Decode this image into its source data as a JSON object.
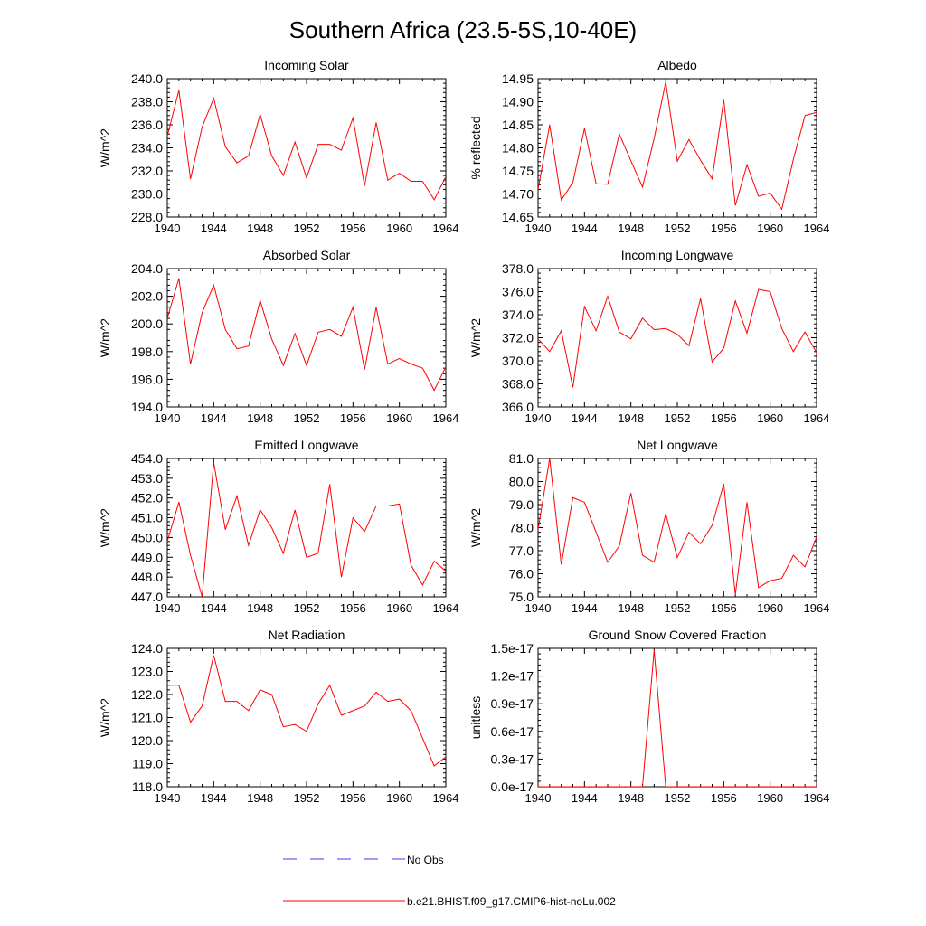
{
  "figure": {
    "title": "Southern Africa (23.5-5S,10-40E)",
    "legend": {
      "placement": "bottom-center",
      "entries": [
        {
          "label": "No Obs",
          "color": "#3b3bff",
          "dash": true
        },
        {
          "label": "b.e21.BHIST.f09_g17.CMIP6-hist-noLu.002",
          "color": "#ff0000",
          "dash": false
        }
      ]
    }
  },
  "chart_data": [
    {
      "type": "line",
      "title": "Incoming Solar",
      "ylabel": "W/m^2",
      "xlim": [
        1940,
        1964
      ],
      "ylim": [
        228.0,
        240.0
      ],
      "x_ticks": [
        "1940",
        "1944",
        "1948",
        "1952",
        "1956",
        "1960",
        "1964"
      ],
      "y_ticks": [
        "228.0",
        "230.0",
        "232.0",
        "234.0",
        "236.0",
        "238.0",
        "240.0"
      ],
      "series": [
        {
          "color": "#ff0000",
          "x": [
            1940,
            1941,
            1942,
            1943,
            1944,
            1945,
            1946,
            1947,
            1948,
            1949,
            1950,
            1951,
            1952,
            1953,
            1954,
            1955,
            1956,
            1957,
            1958,
            1959,
            1960,
            1961,
            1962,
            1963,
            1964
          ],
          "values": [
            235.0,
            239.0,
            231.3,
            235.8,
            238.3,
            234.1,
            232.7,
            233.3,
            236.9,
            233.3,
            231.6,
            234.5,
            231.4,
            234.3,
            234.3,
            233.8,
            236.6,
            230.7,
            236.2,
            231.2,
            231.8,
            231.1,
            231.1,
            229.5,
            231.5
          ]
        }
      ]
    },
    {
      "type": "line",
      "title": "Albedo",
      "ylabel": "% reflected",
      "xlim": [
        1940,
        1964
      ],
      "ylim": [
        14.65,
        14.95
      ],
      "x_ticks": [
        "1940",
        "1944",
        "1948",
        "1952",
        "1956",
        "1960",
        "1964"
      ],
      "y_ticks": [
        "14.65",
        "14.70",
        "14.75",
        "14.80",
        "14.85",
        "14.90",
        "14.95"
      ],
      "series": [
        {
          "color": "#ff0000",
          "x": [
            1940,
            1941,
            1942,
            1943,
            1944,
            1945,
            1946,
            1947,
            1948,
            1949,
            1950,
            1951,
            1952,
            1953,
            1954,
            1955,
            1956,
            1957,
            1958,
            1959,
            1960,
            1961,
            1962,
            1963,
            1964
          ],
          "values": [
            14.71,
            14.85,
            14.687,
            14.725,
            14.842,
            14.722,
            14.721,
            14.83,
            14.772,
            14.715,
            14.82,
            14.943,
            14.771,
            14.818,
            14.773,
            14.733,
            14.904,
            14.675,
            14.763,
            14.695,
            14.702,
            14.667,
            14.775,
            14.87,
            14.877
          ]
        }
      ]
    },
    {
      "type": "line",
      "title": "Absorbed Solar",
      "ylabel": "W/m^2",
      "xlim": [
        1940,
        1964
      ],
      "ylim": [
        194.0,
        204.0
      ],
      "x_ticks": [
        "1940",
        "1944",
        "1948",
        "1952",
        "1956",
        "1960",
        "1964"
      ],
      "y_ticks": [
        "194.0",
        "196.0",
        "198.0",
        "200.0",
        "202.0",
        "204.0"
      ],
      "series": [
        {
          "color": "#ff0000",
          "x": [
            1940,
            1941,
            1942,
            1943,
            1944,
            1945,
            1946,
            1947,
            1948,
            1949,
            1950,
            1951,
            1952,
            1953,
            1954,
            1955,
            1956,
            1957,
            1958,
            1959,
            1960,
            1961,
            1962,
            1963,
            1964
          ],
          "values": [
            200.4,
            203.3,
            197.1,
            200.8,
            202.8,
            199.6,
            198.2,
            198.4,
            201.7,
            198.9,
            197.0,
            199.3,
            197.0,
            199.4,
            199.6,
            199.1,
            201.2,
            196.7,
            201.2,
            197.1,
            197.5,
            197.1,
            196.8,
            195.2,
            196.9
          ]
        }
      ]
    },
    {
      "type": "line",
      "title": "Incoming Longwave",
      "ylabel": "W/m^2",
      "xlim": [
        1940,
        1964
      ],
      "ylim": [
        366.0,
        378.0
      ],
      "x_ticks": [
        "1940",
        "1944",
        "1948",
        "1952",
        "1956",
        "1960",
        "1964"
      ],
      "y_ticks": [
        "366.0",
        "368.0",
        "370.0",
        "372.0",
        "374.0",
        "376.0",
        "378.0"
      ],
      "series": [
        {
          "color": "#ff0000",
          "x": [
            1940,
            1941,
            1942,
            1943,
            1944,
            1945,
            1946,
            1947,
            1948,
            1949,
            1950,
            1951,
            1952,
            1953,
            1954,
            1955,
            1956,
            1957,
            1958,
            1959,
            1960,
            1961,
            1962,
            1963,
            1964
          ],
          "values": [
            371.9,
            370.8,
            372.6,
            367.7,
            374.7,
            372.6,
            375.6,
            372.5,
            371.9,
            373.7,
            372.7,
            372.8,
            372.3,
            371.3,
            375.4,
            369.9,
            371.1,
            375.2,
            372.4,
            376.2,
            376.0,
            372.8,
            370.8,
            372.5,
            370.7
          ]
        }
      ]
    },
    {
      "type": "line",
      "title": "Emitted Longwave",
      "ylabel": "W/m^2",
      "xlim": [
        1940,
        1964
      ],
      "ylim": [
        447.0,
        454.0
      ],
      "x_ticks": [
        "1940",
        "1944",
        "1948",
        "1952",
        "1956",
        "1960",
        "1964"
      ],
      "y_ticks": [
        "447.0",
        "448.0",
        "449.0",
        "450.0",
        "451.0",
        "452.0",
        "453.0",
        "454.0"
      ],
      "series": [
        {
          "color": "#ff0000",
          "x": [
            1940,
            1941,
            1942,
            1943,
            1944,
            1945,
            1946,
            1947,
            1948,
            1949,
            1950,
            1951,
            1952,
            1953,
            1954,
            1955,
            1956,
            1957,
            1958,
            1959,
            1960,
            1961,
            1962,
            1963,
            1964
          ],
          "values": [
            449.8,
            451.8,
            449.1,
            447.0,
            453.8,
            450.4,
            452.1,
            449.6,
            451.4,
            450.5,
            449.2,
            451.4,
            449.0,
            449.2,
            452.7,
            448.0,
            451.0,
            450.3,
            451.6,
            451.6,
            451.7,
            448.6,
            447.6,
            448.8,
            448.3
          ]
        }
      ]
    },
    {
      "type": "line",
      "title": "Net Longwave",
      "ylabel": "W/m^2",
      "xlim": [
        1940,
        1964
      ],
      "ylim": [
        75.0,
        81.0
      ],
      "x_ticks": [
        "1940",
        "1944",
        "1948",
        "1952",
        "1956",
        "1960",
        "1964"
      ],
      "y_ticks": [
        "75.0",
        "76.0",
        "77.0",
        "78.0",
        "79.0",
        "80.0",
        "81.0"
      ],
      "series": [
        {
          "color": "#ff0000",
          "x": [
            1940,
            1941,
            1942,
            1943,
            1944,
            1945,
            1946,
            1947,
            1948,
            1949,
            1950,
            1951,
            1952,
            1953,
            1954,
            1955,
            1956,
            1957,
            1958,
            1959,
            1960,
            1961,
            1962,
            1963,
            1964
          ],
          "values": [
            77.9,
            81.0,
            76.4,
            79.3,
            79.1,
            77.8,
            76.5,
            77.2,
            79.5,
            76.8,
            76.5,
            78.6,
            76.7,
            77.8,
            77.3,
            78.1,
            79.9,
            75.1,
            79.1,
            75.4,
            75.7,
            75.8,
            76.8,
            76.3,
            77.6
          ]
        }
      ]
    },
    {
      "type": "line",
      "title": "Net Radiation",
      "ylabel": "W/m^2",
      "xlim": [
        1940,
        1964
      ],
      "ylim": [
        118.0,
        124.0
      ],
      "x_ticks": [
        "1940",
        "1944",
        "1948",
        "1952",
        "1956",
        "1960",
        "1964"
      ],
      "y_ticks": [
        "118.0",
        "119.0",
        "120.0",
        "121.0",
        "122.0",
        "123.0",
        "124.0"
      ],
      "series": [
        {
          "color": "#ff0000",
          "x": [
            1940,
            1941,
            1942,
            1943,
            1944,
            1945,
            1946,
            1947,
            1948,
            1949,
            1950,
            1951,
            1952,
            1953,
            1954,
            1955,
            1956,
            1957,
            1958,
            1959,
            1960,
            1961,
            1962,
            1963,
            1964
          ],
          "values": [
            122.4,
            122.4,
            120.8,
            121.5,
            123.7,
            121.7,
            121.7,
            121.3,
            122.2,
            122.0,
            120.6,
            120.7,
            120.4,
            121.6,
            122.4,
            121.1,
            121.3,
            121.5,
            122.1,
            121.7,
            121.8,
            121.3,
            120.1,
            118.9,
            119.3
          ]
        }
      ]
    },
    {
      "type": "line",
      "title": "Ground Snow Covered Fraction",
      "ylabel": "unitless",
      "xlim": [
        1940,
        1964
      ],
      "ylim": [
        0.0,
        1.5e-17
      ],
      "x_ticks": [
        "1940",
        "1944",
        "1948",
        "1952",
        "1956",
        "1960",
        "1964"
      ],
      "y_ticks": [
        "0.0e-17",
        "0.3e-17",
        "0.6e-17",
        "0.9e-17",
        "1.2e-17",
        "1.5e-17"
      ],
      "series": [
        {
          "color": "#ff0000",
          "x": [
            1940,
            1941,
            1942,
            1943,
            1944,
            1945,
            1946,
            1947,
            1948,
            1949,
            1950,
            1951,
            1952,
            1953,
            1954,
            1955,
            1956,
            1957,
            1958,
            1959,
            1960,
            1961,
            1962,
            1963,
            1964
          ],
          "values": [
            0,
            0,
            0,
            0,
            0,
            0,
            0,
            0,
            0,
            0,
            1.48e-17,
            0,
            0,
            0,
            0,
            0,
            0,
            0,
            0,
            0,
            0,
            0,
            0,
            0,
            0
          ]
        }
      ]
    }
  ]
}
